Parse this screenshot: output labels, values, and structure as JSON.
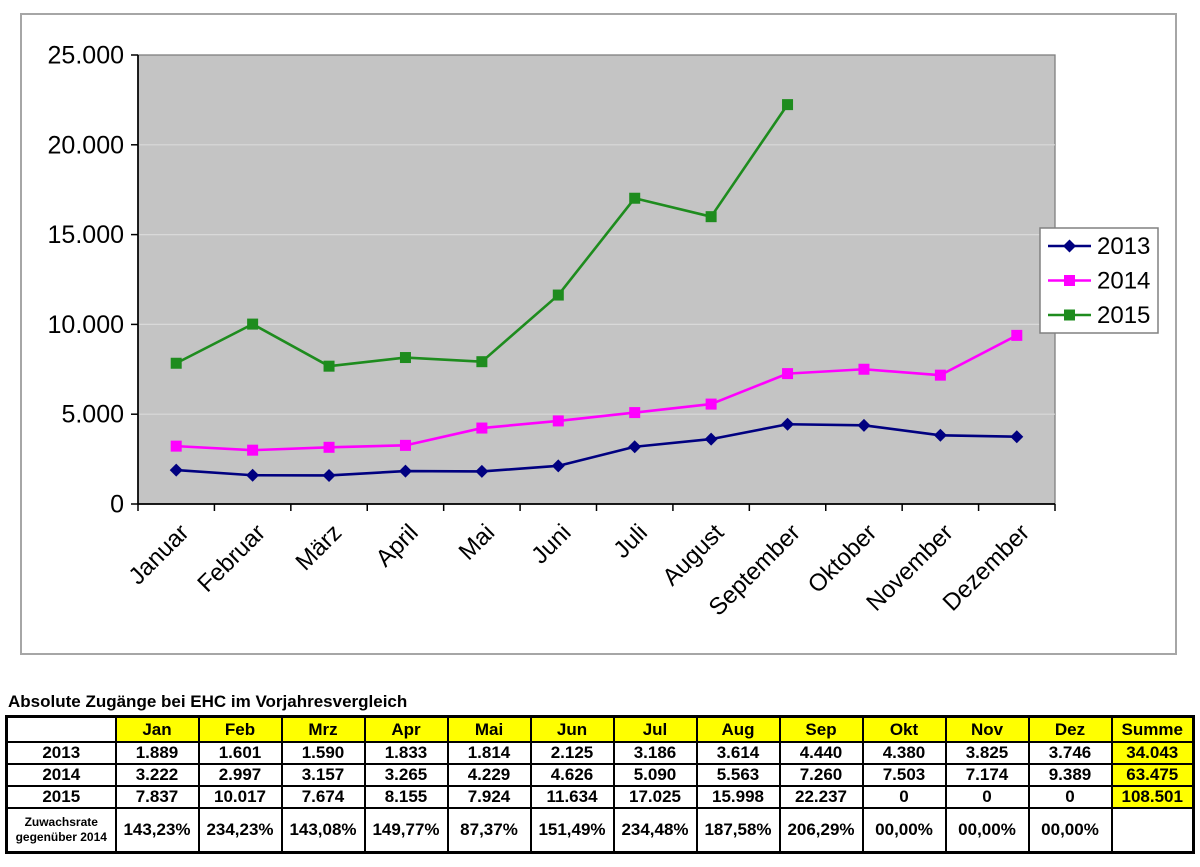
{
  "chart_data": {
    "type": "line",
    "title": "",
    "categories": [
      "Januar",
      "Februar",
      "März",
      "April",
      "Mai",
      "Juni",
      "Juli",
      "August",
      "September",
      "Oktober",
      "November",
      "Dezember"
    ],
    "series": [
      {
        "name": "2013",
        "color": "#000080",
        "marker": "diamond",
        "values": [
          1889,
          1601,
          1590,
          1833,
          1814,
          2125,
          3186,
          3614,
          4440,
          4380,
          3825,
          3746
        ]
      },
      {
        "name": "2014",
        "color": "#FF00FF",
        "marker": "square",
        "values": [
          3222,
          2997,
          3157,
          3265,
          4229,
          4626,
          5090,
          5563,
          7260,
          7503,
          7174,
          9389
        ]
      },
      {
        "name": "2015",
        "color": "#1E8C1E",
        "marker": "square",
        "values": [
          7837,
          10017,
          7674,
          8155,
          7924,
          11634,
          17025,
          15998,
          22237,
          null,
          null,
          null
        ]
      }
    ],
    "ylim": [
      0,
      25000
    ],
    "yticks": [
      {
        "value": 0,
        "label": "0"
      },
      {
        "value": 5000,
        "label": "5.000"
      },
      {
        "value": 10000,
        "label": "10.000"
      },
      {
        "value": 15000,
        "label": "15.000"
      },
      {
        "value": 20000,
        "label": "20.000"
      },
      {
        "value": 25000,
        "label": "25.000"
      }
    ],
    "grid": "horizontal",
    "gridline_color": "#D9D9D9",
    "plot_background": "#C4C4C4",
    "legend": {
      "position": "right",
      "entries": [
        "2013",
        "2014",
        "2015"
      ]
    }
  },
  "table": {
    "title": "Absolute Zugänge bei EHC im Vorjahresvergleich",
    "header_bg": "#FFFF00",
    "columns": [
      "",
      "Jan",
      "Feb",
      "Mrz",
      "Apr",
      "Mai",
      "Jun",
      "Jul",
      "Aug",
      "Sep",
      "Okt",
      "Nov",
      "Dez",
      "Summe"
    ],
    "rows": [
      {
        "label": "2013",
        "values": [
          "1.889",
          "1.601",
          "1.590",
          "1.833",
          "1.814",
          "2.125",
          "3.186",
          "3.614",
          "4.440",
          "4.380",
          "3.825",
          "3.746"
        ],
        "sum": "34.043",
        "sum_bg": true,
        "tall": false
      },
      {
        "label": "2014",
        "values": [
          "3.222",
          "2.997",
          "3.157",
          "3.265",
          "4.229",
          "4.626",
          "5.090",
          "5.563",
          "7.260",
          "7.503",
          "7.174",
          "9.389"
        ],
        "sum": "63.475",
        "sum_bg": true,
        "tall": false
      },
      {
        "label": "2015",
        "values": [
          "7.837",
          "10.017",
          "7.674",
          "8.155",
          "7.924",
          "11.634",
          "17.025",
          "15.998",
          "22.237",
          "0",
          "0",
          "0"
        ],
        "sum": "108.501",
        "sum_bg": true,
        "tall": false
      },
      {
        "label": "Zuwachsrate gegenüber 2014",
        "label_lines": [
          "Zuwachsrate",
          "gegenüber 2014"
        ],
        "values": [
          "143,23%",
          "234,23%",
          "143,08%",
          "149,77%",
          "87,37%",
          "151,49%",
          "234,48%",
          "187,58%",
          "206,29%",
          "00,00%",
          "00,00%",
          "00,00%"
        ],
        "sum": "",
        "sum_bg": false,
        "tall": true
      }
    ]
  }
}
